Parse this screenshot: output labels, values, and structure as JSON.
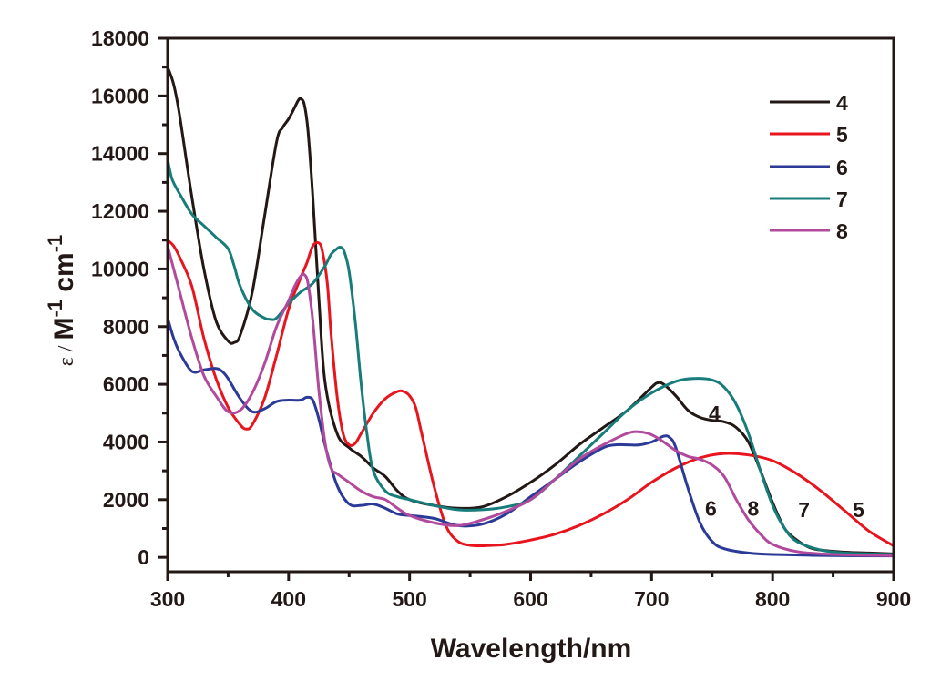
{
  "chart_data": {
    "type": "line",
    "title": "",
    "xlabel": "Wavelength/nm",
    "ylabel": {
      "prefix": "ε / ",
      "main": "M",
      "sup1": "-1",
      "mid": " cm",
      "sup2": "-1"
    },
    "xlim": [
      300,
      900
    ],
    "ylim": [
      -500,
      18000
    ],
    "x_ticks": [
      300,
      400,
      500,
      600,
      700,
      800,
      900
    ],
    "x_minor_ticks": [
      350,
      450,
      550,
      650,
      750,
      850
    ],
    "y_ticks": [
      0,
      2000,
      4000,
      6000,
      8000,
      10000,
      12000,
      14000,
      16000,
      18000
    ],
    "y_minor_ticks": [
      1000,
      3000,
      5000,
      7000,
      9000,
      11000,
      13000,
      15000,
      17000
    ],
    "grid": false,
    "legend_position": "top-right",
    "series": [
      {
        "name": "4",
        "color": "#231815",
        "x": [
          300,
          305,
          310,
          320,
          330,
          340,
          350,
          355,
          360,
          370,
          380,
          390,
          395,
          400,
          405,
          408,
          410,
          413,
          416,
          420,
          425,
          430,
          440,
          450,
          460,
          470,
          480,
          490,
          500,
          520,
          540,
          560,
          580,
          600,
          620,
          640,
          660,
          680,
          700,
          705,
          710,
          720,
          730,
          740,
          750,
          760,
          770,
          780,
          790,
          800,
          810,
          820,
          830,
          840,
          860,
          880,
          900
        ],
        "y": [
          17000,
          16400,
          15300,
          12500,
          10000,
          8200,
          7500,
          7450,
          7700,
          9200,
          11800,
          14400,
          14900,
          15200,
          15600,
          15850,
          15900,
          15700,
          14800,
          12500,
          9000,
          6100,
          4300,
          3800,
          3500,
          3100,
          2800,
          2300,
          2000,
          1800,
          1700,
          1750,
          2100,
          2600,
          3200,
          3900,
          4500,
          5100,
          5900,
          6050,
          6000,
          5600,
          5100,
          4850,
          4750,
          4700,
          4500,
          4000,
          3000,
          1900,
          1000,
          600,
          350,
          250,
          180,
          150,
          120
        ]
      },
      {
        "name": "5",
        "color": "#e8141e",
        "x": [
          300,
          305,
          310,
          320,
          330,
          340,
          350,
          360,
          365,
          370,
          380,
          390,
          400,
          410,
          415,
          420,
          425,
          428,
          432,
          435,
          440,
          445,
          450,
          455,
          460,
          470,
          480,
          490,
          495,
          500,
          505,
          510,
          520,
          530,
          540,
          550,
          560,
          570,
          580,
          600,
          620,
          640,
          660,
          680,
          700,
          720,
          740,
          760,
          780,
          800,
          820,
          840,
          860,
          880,
          900
        ],
        "y": [
          11000,
          10800,
          10400,
          9400,
          7600,
          6200,
          5200,
          4600,
          4450,
          4600,
          5500,
          7000,
          8600,
          9700,
          10200,
          10800,
          10900,
          10600,
          9500,
          7800,
          5600,
          4300,
          3900,
          3950,
          4300,
          5000,
          5500,
          5750,
          5750,
          5600,
          5200,
          4300,
          2500,
          1100,
          550,
          420,
          400,
          420,
          450,
          600,
          800,
          1100,
          1500,
          2000,
          2600,
          3100,
          3450,
          3600,
          3550,
          3350,
          2900,
          2300,
          1600,
          900,
          400
        ]
      },
      {
        "name": "6",
        "color": "#2b3a96",
        "x": [
          300,
          305,
          310,
          320,
          330,
          340,
          345,
          350,
          360,
          370,
          380,
          390,
          400,
          410,
          415,
          420,
          425,
          430,
          440,
          450,
          460,
          470,
          480,
          490,
          500,
          520,
          540,
          560,
          580,
          600,
          620,
          640,
          660,
          670,
          680,
          690,
          700,
          710,
          715,
          720,
          730,
          740,
          750,
          760,
          780,
          800,
          850,
          900
        ],
        "y": [
          8300,
          7600,
          7100,
          6450,
          6500,
          6550,
          6450,
          6200,
          5500,
          5050,
          5150,
          5400,
          5450,
          5450,
          5550,
          5450,
          4800,
          3900,
          2500,
          1850,
          1800,
          1850,
          1700,
          1500,
          1450,
          1350,
          1100,
          1150,
          1500,
          2100,
          2700,
          3300,
          3800,
          3900,
          3900,
          3900,
          4000,
          4200,
          4150,
          3800,
          2400,
          1200,
          550,
          300,
          150,
          100,
          60,
          50
        ]
      },
      {
        "name": "7",
        "color": "#177d7b",
        "x": [
          300,
          303,
          306,
          310,
          320,
          330,
          340,
          350,
          355,
          360,
          370,
          380,
          385,
          390,
          400,
          410,
          420,
          430,
          435,
          440,
          443,
          446,
          450,
          455,
          460,
          465,
          470,
          480,
          490,
          500,
          520,
          540,
          560,
          580,
          600,
          620,
          640,
          660,
          680,
          700,
          720,
          735,
          750,
          760,
          770,
          780,
          790,
          800,
          810,
          820,
          840,
          860,
          880,
          900
        ],
        "y": [
          13800,
          13200,
          12900,
          12600,
          11900,
          11500,
          11100,
          10700,
          10100,
          9400,
          8600,
          8300,
          8250,
          8300,
          8800,
          9200,
          9500,
          10100,
          10500,
          10700,
          10750,
          10600,
          9900,
          8200,
          6000,
          4200,
          3000,
          2300,
          2100,
          2000,
          1800,
          1650,
          1650,
          1750,
          2000,
          2700,
          3500,
          4300,
          5100,
          5700,
          6100,
          6200,
          6150,
          5900,
          5300,
          4300,
          3000,
          1800,
          1000,
          550,
          250,
          150,
          120,
          100
        ]
      },
      {
        "name": "8",
        "color": "#b1499c",
        "x": [
          300,
          305,
          310,
          320,
          330,
          340,
          350,
          360,
          370,
          380,
          390,
          400,
          405,
          410,
          413,
          416,
          420,
          425,
          430,
          435,
          440,
          450,
          460,
          470,
          480,
          490,
          500,
          520,
          540,
          560,
          580,
          600,
          620,
          640,
          660,
          680,
          690,
          700,
          710,
          720,
          730,
          740,
          750,
          760,
          770,
          780,
          790,
          800,
          820,
          850,
          900
        ],
        "y": [
          10800,
          10000,
          9200,
          7600,
          6300,
          5600,
          5050,
          5100,
          5700,
          6700,
          8000,
          8900,
          9400,
          9750,
          9800,
          9500,
          8200,
          5800,
          4000,
          3100,
          2900,
          2600,
          2300,
          2100,
          2000,
          1700,
          1450,
          1200,
          1100,
          1300,
          1600,
          2000,
          2700,
          3400,
          3900,
          4300,
          4350,
          4250,
          4000,
          3700,
          3500,
          3400,
          3200,
          2800,
          2000,
          1300,
          800,
          450,
          200,
          100,
          60
        ]
      }
    ],
    "annotations": [
      {
        "text": "4",
        "x": 752,
        "y": 5000
      },
      {
        "text": "6",
        "x": 749,
        "y": 1700
      },
      {
        "text": "8",
        "x": 784,
        "y": 1700
      },
      {
        "text": "7",
        "x": 826,
        "y": 1650
      },
      {
        "text": "5",
        "x": 871,
        "y": 1650
      }
    ]
  }
}
